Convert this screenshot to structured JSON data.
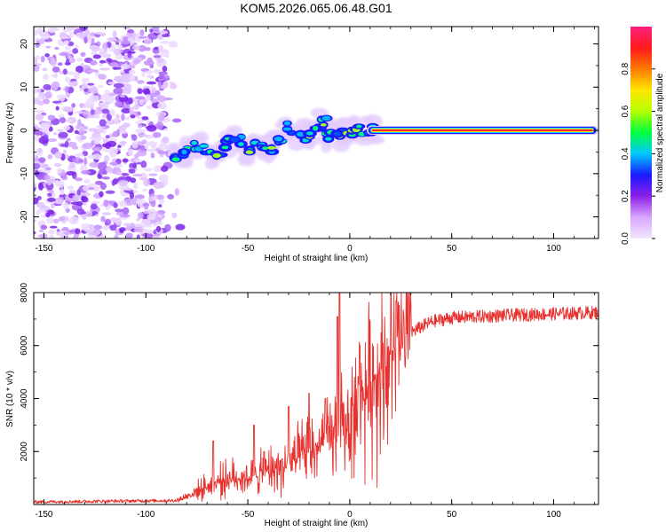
{
  "chart_data": [
    {
      "type": "heatmap",
      "title": "KOM5.2026.065.06.48.G01",
      "xlabel": "Height of straight line (km)",
      "ylabel": "Frequency (Hz)",
      "xlim": [
        -155,
        122
      ],
      "ylim": [
        -25,
        24
      ],
      "xticks": [
        -150,
        -100,
        -50,
        0,
        50,
        100
      ],
      "yticks": [
        -20,
        -10,
        0,
        10,
        20
      ],
      "colorbar": {
        "label": "Normalized spectral amplitude",
        "range": [
          0,
          1
        ],
        "ticks": [
          0.0,
          0.2,
          0.4,
          0.6,
          0.8
        ],
        "colormap": [
          "#f2e6ff",
          "#d9a6ff",
          "#8c1fe6",
          "#1a1aff",
          "#00c8ff",
          "#00ff40",
          "#b4ff00",
          "#ffe600",
          "#ff7a00",
          "#ff1a1a",
          "#ff2080"
        ]
      },
      "noise_region": {
        "x": [
          -155,
          -90
        ],
        "y": [
          -25,
          24
        ]
      },
      "ridge": [
        {
          "x": -85,
          "f": -5.5
        },
        {
          "x": -80,
          "f": -5.0
        },
        {
          "x": -75,
          "f": -4.0
        },
        {
          "x": -70,
          "f": -4.5
        },
        {
          "x": -65,
          "f": -6.5
        },
        {
          "x": -60,
          "f": -3.0
        },
        {
          "x": -55,
          "f": -2.0
        },
        {
          "x": -50,
          "f": -5.0
        },
        {
          "x": -45,
          "f": -4.0
        },
        {
          "x": -40,
          "f": -4.0
        },
        {
          "x": -35,
          "f": -1.5
        },
        {
          "x": -30,
          "f": 0.5
        },
        {
          "x": -25,
          "f": -1.0
        },
        {
          "x": -20,
          "f": -1.5
        },
        {
          "x": -15,
          "f": -0.5
        },
        {
          "x": -12,
          "f": 2.0
        },
        {
          "x": -10,
          "f": -1.5
        },
        {
          "x": -5,
          "f": -1.0
        },
        {
          "x": 0,
          "f": 0.0
        },
        {
          "x": 5,
          "f": 0.0
        },
        {
          "x": 10,
          "f": 0.0
        }
      ],
      "line": {
        "x": [
          10,
          120
        ],
        "f": 0
      }
    },
    {
      "type": "line",
      "xlabel": "Height of straight line (km)",
      "ylabel": "SNR (10 * v/v)",
      "xlim": [
        -155,
        122
      ],
      "ylim": [
        0,
        8000
      ],
      "xticks": [
        -150,
        -100,
        -50,
        0,
        50,
        100
      ],
      "yticks": [
        2000,
        4000,
        6000,
        8000
      ],
      "color": "#e8302d",
      "trend": [
        {
          "x": -155,
          "y": 100
        },
        {
          "x": -85,
          "y": 150
        },
        {
          "x": -80,
          "y": 300
        },
        {
          "x": -70,
          "y": 700
        },
        {
          "x": -60,
          "y": 1000
        },
        {
          "x": -50,
          "y": 1000
        },
        {
          "x": -40,
          "y": 1300
        },
        {
          "x": -30,
          "y": 1500
        },
        {
          "x": -20,
          "y": 2000
        },
        {
          "x": -10,
          "y": 2400
        },
        {
          "x": 0,
          "y": 3200
        },
        {
          "x": 10,
          "y": 4500
        },
        {
          "x": 20,
          "y": 5700
        },
        {
          "x": 30,
          "y": 6500
        },
        {
          "x": 40,
          "y": 6900
        },
        {
          "x": 50,
          "y": 7050
        },
        {
          "x": 80,
          "y": 7150
        },
        {
          "x": 122,
          "y": 7250
        }
      ],
      "spikes": [
        {
          "x": -67,
          "y": 2400
        },
        {
          "x": -47,
          "y": 3000
        },
        {
          "x": -42,
          "y": 2000
        },
        {
          "x": -30,
          "y": 3700
        },
        {
          "x": -20,
          "y": 4200
        },
        {
          "x": -12,
          "y": 4000
        },
        {
          "x": -5,
          "y": 8000
        },
        {
          "x": -6,
          "y": 7100
        },
        {
          "x": 5,
          "y": 6000
        }
      ]
    }
  ]
}
